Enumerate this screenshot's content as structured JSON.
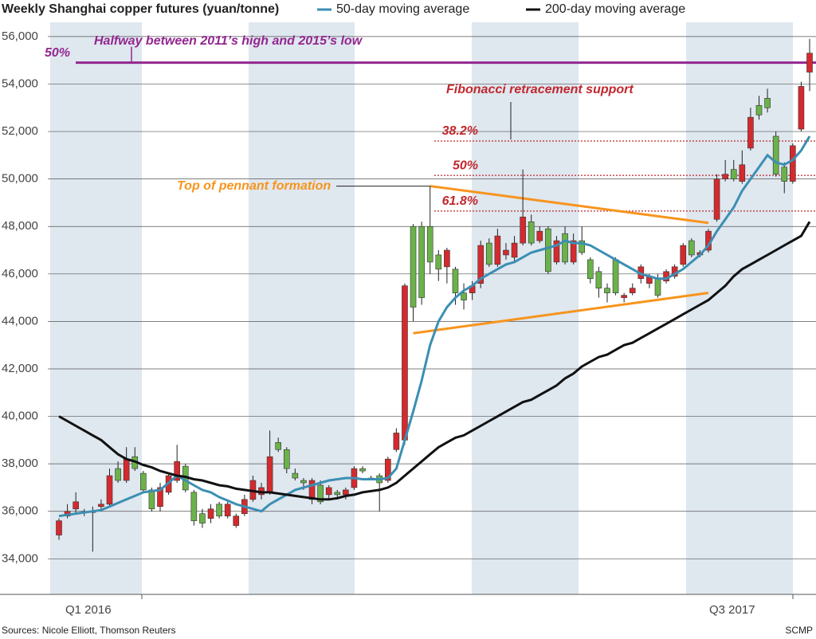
{
  "chart_data": {
    "type": "candlestick",
    "title": "Weekly Shanghai copper futures (yuan/tonne)",
    "ylim": [
      32500,
      56600
    ],
    "yticks": [
      {
        "value": 34000,
        "label": "34,000"
      },
      {
        "value": 36000,
        "label": "36,000"
      },
      {
        "value": 38000,
        "label": "38,000"
      },
      {
        "value": 40000,
        "label": "40,000"
      },
      {
        "value": 42000,
        "label": "42,000"
      },
      {
        "value": 44000,
        "label": "44,000"
      },
      {
        "value": 46000,
        "label": "46,000"
      },
      {
        "value": 48000,
        "label": "48,000"
      },
      {
        "value": 50000,
        "label": "50,000"
      },
      {
        "value": 52000,
        "label": "52,000"
      },
      {
        "value": 54000,
        "label": "54,000"
      },
      {
        "value": 56000,
        "label": "56,000"
      }
    ],
    "grid": true,
    "x_labels": [
      "Q1 2016",
      "Q3 2017"
    ],
    "up_color": "#d42a2e",
    "down_color": "#6bb24a",
    "candles": [
      {
        "open": 35000,
        "high": 35700,
        "low": 34800,
        "close": 35600
      },
      {
        "open": 35800,
        "high": 36300,
        "low": 35700,
        "close": 36000
      },
      {
        "open": 36100,
        "high": 36800,
        "low": 35900,
        "close": 36400
      },
      {
        "open": 36000,
        "high": 36100,
        "low": 35800,
        "close": 36000
      },
      {
        "open": 36000,
        "high": 36200,
        "low": 34300,
        "close": 36000
      },
      {
        "open": 36200,
        "high": 36500,
        "low": 36100,
        "close": 36300
      },
      {
        "open": 36300,
        "high": 37800,
        "low": 36200,
        "close": 37500
      },
      {
        "open": 37800,
        "high": 38100,
        "low": 37200,
        "close": 37300
      },
      {
        "open": 37300,
        "high": 38700,
        "low": 37200,
        "close": 38200
      },
      {
        "open": 38300,
        "high": 38700,
        "low": 37700,
        "close": 37800
      },
      {
        "open": 37600,
        "high": 37700,
        "low": 36800,
        "close": 36900
      },
      {
        "open": 36900,
        "high": 37000,
        "low": 36000,
        "close": 36100
      },
      {
        "open": 36200,
        "high": 37200,
        "low": 36000,
        "close": 37000
      },
      {
        "open": 36800,
        "high": 37600,
        "low": 36700,
        "close": 37500
      },
      {
        "open": 37300,
        "high": 38800,
        "low": 37200,
        "close": 38100
      },
      {
        "open": 37900,
        "high": 38000,
        "low": 36800,
        "close": 36900
      },
      {
        "open": 36800,
        "high": 36900,
        "low": 35400,
        "close": 35600
      },
      {
        "open": 35900,
        "high": 36100,
        "low": 35300,
        "close": 35500
      },
      {
        "open": 35700,
        "high": 36300,
        "low": 35500,
        "close": 36100
      },
      {
        "open": 36300,
        "high": 36400,
        "low": 35700,
        "close": 35800
      },
      {
        "open": 35800,
        "high": 36500,
        "low": 35700,
        "close": 36300
      },
      {
        "open": 35400,
        "high": 35900,
        "low": 35300,
        "close": 35800
      },
      {
        "open": 35900,
        "high": 36700,
        "low": 35800,
        "close": 36500
      },
      {
        "open": 36500,
        "high": 37500,
        "low": 36400,
        "close": 37300
      },
      {
        "open": 36700,
        "high": 37200,
        "low": 36500,
        "close": 37000
      },
      {
        "open": 36800,
        "high": 39400,
        "low": 36700,
        "close": 38300
      },
      {
        "open": 38900,
        "high": 39100,
        "low": 38500,
        "close": 38600
      },
      {
        "open": 38600,
        "high": 38700,
        "low": 37600,
        "close": 37800
      },
      {
        "open": 37600,
        "high": 37800,
        "low": 37300,
        "close": 37400
      },
      {
        "open": 37300,
        "high": 37400,
        "low": 36900,
        "close": 37200
      },
      {
        "open": 36500,
        "high": 37400,
        "low": 36300,
        "close": 37300
      },
      {
        "open": 37100,
        "high": 37300,
        "low": 36300,
        "close": 36400
      },
      {
        "open": 36700,
        "high": 37100,
        "low": 36500,
        "close": 37000
      },
      {
        "open": 36800,
        "high": 36900,
        "low": 36500,
        "close": 36700
      },
      {
        "open": 36700,
        "high": 37000,
        "low": 36500,
        "close": 36900
      },
      {
        "open": 37000,
        "high": 37900,
        "low": 36900,
        "close": 37800
      },
      {
        "open": 37800,
        "high": 37900,
        "low": 37600,
        "close": 37700
      },
      {
        "open": 37400,
        "high": 37500,
        "low": 37300,
        "close": 37400
      },
      {
        "open": 37500,
        "high": 37600,
        "low": 36000,
        "close": 37200
      },
      {
        "open": 37300,
        "high": 38300,
        "low": 37200,
        "close": 38200
      },
      {
        "open": 38600,
        "high": 39500,
        "low": 38500,
        "close": 39300
      },
      {
        "open": 39000,
        "high": 45600,
        "low": 38800,
        "close": 45500
      },
      {
        "open": 48000,
        "high": 48100,
        "low": 44000,
        "close": 44600
      },
      {
        "open": 48000,
        "high": 48200,
        "low": 44700,
        "close": 45000
      },
      {
        "open": 48000,
        "high": 49700,
        "low": 46000,
        "close": 46500
      },
      {
        "open": 46800,
        "high": 47000,
        "low": 45700,
        "close": 46200
      },
      {
        "open": 46300,
        "high": 47100,
        "low": 45600,
        "close": 47000
      },
      {
        "open": 46200,
        "high": 46300,
        "low": 44700,
        "close": 45200
      },
      {
        "open": 45200,
        "high": 45600,
        "low": 44500,
        "close": 44900
      },
      {
        "open": 45200,
        "high": 45700,
        "low": 44900,
        "close": 45500
      },
      {
        "open": 45600,
        "high": 47400,
        "low": 45400,
        "close": 47200
      },
      {
        "open": 47300,
        "high": 47500,
        "low": 46300,
        "close": 46400
      },
      {
        "open": 46400,
        "high": 47900,
        "low": 46300,
        "close": 47600
      },
      {
        "open": 46800,
        "high": 47300,
        "low": 46600,
        "close": 47000
      },
      {
        "open": 46700,
        "high": 47600,
        "low": 46500,
        "close": 47300
      },
      {
        "open": 47300,
        "high": 50400,
        "low": 47200,
        "close": 48400
      },
      {
        "open": 48200,
        "high": 48500,
        "low": 47200,
        "close": 47300
      },
      {
        "open": 47400,
        "high": 48000,
        "low": 47300,
        "close": 47800
      },
      {
        "open": 47900,
        "high": 48000,
        "low": 46000,
        "close": 46100
      },
      {
        "open": 46500,
        "high": 47600,
        "low": 46400,
        "close": 47400
      },
      {
        "open": 47700,
        "high": 48000,
        "low": 46400,
        "close": 46500
      },
      {
        "open": 46500,
        "high": 47700,
        "low": 46400,
        "close": 47400
      },
      {
        "open": 47400,
        "high": 48000,
        "low": 46800,
        "close": 46900
      },
      {
        "open": 46600,
        "high": 46700,
        "low": 45600,
        "close": 45800
      },
      {
        "open": 46100,
        "high": 46300,
        "low": 45000,
        "close": 45400
      },
      {
        "open": 45400,
        "high": 45600,
        "low": 44800,
        "close": 45200
      },
      {
        "open": 46600,
        "high": 46700,
        "low": 45100,
        "close": 45200
      },
      {
        "open": 45000,
        "high": 45200,
        "low": 44800,
        "close": 45100
      },
      {
        "open": 45200,
        "high": 45600,
        "low": 45100,
        "close": 45400
      },
      {
        "open": 45800,
        "high": 46400,
        "low": 45600,
        "close": 46300
      },
      {
        "open": 45600,
        "high": 46000,
        "low": 45400,
        "close": 45900
      },
      {
        "open": 45800,
        "high": 46000,
        "low": 45000,
        "close": 45100
      },
      {
        "open": 45700,
        "high": 46200,
        "low": 45600,
        "close": 46100
      },
      {
        "open": 45900,
        "high": 46400,
        "low": 45800,
        "close": 46300
      },
      {
        "open": 46400,
        "high": 47300,
        "low": 46300,
        "close": 47200
      },
      {
        "open": 47400,
        "high": 47500,
        "low": 46700,
        "close": 46800
      },
      {
        "open": 46800,
        "high": 47000,
        "low": 46700,
        "close": 46900
      },
      {
        "open": 47000,
        "high": 47900,
        "low": 46900,
        "close": 47800
      },
      {
        "open": 48300,
        "high": 50200,
        "low": 48200,
        "close": 50000
      },
      {
        "open": 50000,
        "high": 50800,
        "low": 49900,
        "close": 50200
      },
      {
        "open": 50400,
        "high": 50800,
        "low": 49900,
        "close": 50000
      },
      {
        "open": 49900,
        "high": 51200,
        "low": 49800,
        "close": 50600
      },
      {
        "open": 51300,
        "high": 53000,
        "low": 51200,
        "close": 52600
      },
      {
        "open": 53100,
        "high": 53500,
        "low": 52500,
        "close": 52700
      },
      {
        "open": 53400,
        "high": 53800,
        "low": 52800,
        "close": 53000
      },
      {
        "open": 51800,
        "high": 52000,
        "low": 50100,
        "close": 50200
      },
      {
        "open": 50500,
        "high": 50700,
        "low": 49400,
        "close": 49900
      },
      {
        "open": 49900,
        "high": 51500,
        "low": 49800,
        "close": 51400
      },
      {
        "open": 52100,
        "high": 54100,
        "low": 52000,
        "close": 53900
      },
      {
        "open": 54500,
        "high": 55900,
        "low": 53700,
        "close": 55300
      }
    ],
    "series": [
      {
        "name": "50-day moving average",
        "color": "#3b8fb3",
        "values": [
          35800,
          35850,
          35900,
          35950,
          36000,
          36050,
          36200,
          36350,
          36500,
          36650,
          36800,
          36850,
          36900,
          37200,
          37500,
          37300,
          37100,
          36900,
          36800,
          36600,
          36450,
          36300,
          36200,
          36100,
          36000,
          36300,
          36500,
          36700,
          36900,
          37000,
          37100,
          37200,
          37300,
          37350,
          37400,
          37400,
          37350,
          37350,
          37350,
          37400,
          37800,
          39000,
          40200,
          41500,
          43000,
          44000,
          44600,
          45000,
          45300,
          45500,
          45800,
          46000,
          46200,
          46400,
          46500,
          46700,
          46900,
          47000,
          47100,
          47200,
          47400,
          47300,
          47300,
          47200,
          47000,
          46800,
          46600,
          46400,
          46200,
          46000,
          45900,
          45800,
          45800,
          46000,
          46200,
          46500,
          46800,
          47200,
          47800,
          48300,
          48800,
          49500,
          50000,
          50500,
          51000,
          50700,
          50600,
          50800,
          51200,
          51800
        ]
      },
      {
        "name": "200-day moving average",
        "color": "#111111",
        "values": [
          40000,
          39800,
          39600,
          39400,
          39200,
          39000,
          38700,
          38400,
          38200,
          38100,
          37950,
          37850,
          37700,
          37600,
          37500,
          37450,
          37350,
          37300,
          37200,
          37100,
          37050,
          36950,
          36900,
          36850,
          36800,
          36800,
          36750,
          36700,
          36650,
          36600,
          36550,
          36500,
          36500,
          36550,
          36650,
          36700,
          36800,
          36850,
          36900,
          37000,
          37200,
          37500,
          37800,
          38100,
          38400,
          38700,
          38900,
          39100,
          39200,
          39400,
          39600,
          39800,
          40000,
          40200,
          40400,
          40600,
          40700,
          40900,
          41100,
          41300,
          41600,
          41800,
          42100,
          42300,
          42500,
          42600,
          42800,
          43000,
          43100,
          43300,
          43500,
          43700,
          43900,
          44100,
          44300,
          44500,
          44700,
          44900,
          45200,
          45500,
          45900,
          46200,
          46400,
          46600,
          46800,
          47000,
          47200,
          47400,
          47600,
          48200
        ]
      }
    ],
    "reference_lines": [
      {
        "label": "50%",
        "value": 54900,
        "color": "#93278f",
        "note": "Halfway between 2011’s high and 2015’s low"
      },
      {
        "label": "38.2%",
        "value": 51600,
        "color": "#c1272d"
      },
      {
        "label": "50%",
        "value": 50150,
        "color": "#c1272d"
      },
      {
        "label": "61.8%",
        "value": 48650,
        "color": "#c1272d"
      }
    ],
    "fib_note": "Fibonacci retracement support",
    "pennant": {
      "label": "Top of pennant formation",
      "color": "#f7941d",
      "lines": [
        {
          "from": [
            44,
            49700
          ],
          "to": [
            77,
            48150
          ]
        },
        {
          "from": [
            42,
            43500
          ],
          "to": [
            77,
            45200
          ]
        }
      ]
    },
    "source": "Sources: Nicole Elliott, Thomson Reuters",
    "credit": "SCMP"
  }
}
